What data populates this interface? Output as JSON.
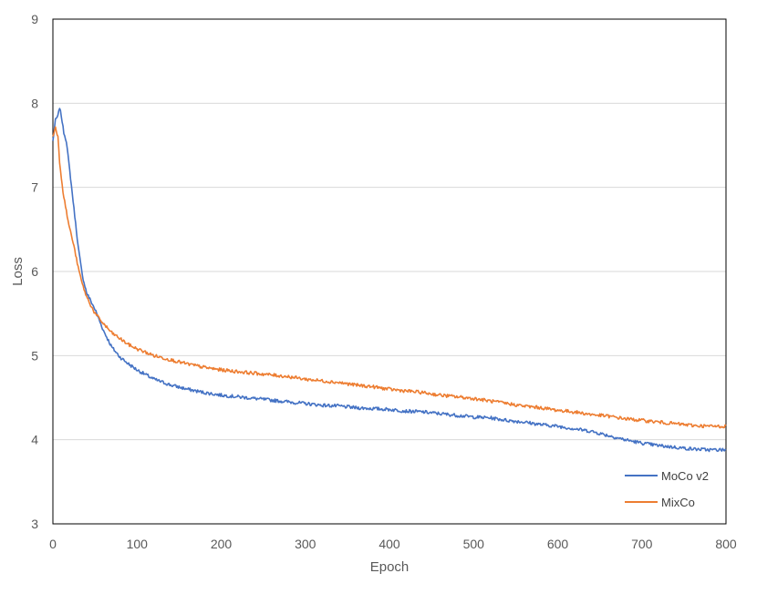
{
  "chart_data": {
    "type": "line",
    "title": "",
    "xlabel": "Epoch",
    "ylabel": "Loss",
    "xlim": [
      0,
      800
    ],
    "ylim": [
      3,
      9
    ],
    "x_ticks": [
      "0",
      "100",
      "200",
      "300",
      "400",
      "500",
      "600",
      "700",
      "800"
    ],
    "y_ticks": [
      "3",
      "4",
      "5",
      "6",
      "7",
      "8",
      "9"
    ],
    "grid": "horizontal",
    "legend_position": "bottom-right",
    "series": [
      {
        "name": "MoCo v2",
        "color": "#4472C4",
        "points": [
          [
            0,
            7.55
          ],
          [
            3,
            7.8
          ],
          [
            6,
            7.85
          ],
          [
            8,
            7.95
          ],
          [
            10,
            7.85
          ],
          [
            13,
            7.65
          ],
          [
            16,
            7.55
          ],
          [
            20,
            7.2
          ],
          [
            25,
            6.75
          ],
          [
            30,
            6.3
          ],
          [
            35,
            5.95
          ],
          [
            40,
            5.75
          ],
          [
            50,
            5.55
          ],
          [
            60,
            5.3
          ],
          [
            70,
            5.1
          ],
          [
            80,
            4.98
          ],
          [
            90,
            4.9
          ],
          [
            100,
            4.83
          ],
          [
            120,
            4.72
          ],
          [
            140,
            4.65
          ],
          [
            160,
            4.6
          ],
          [
            180,
            4.56
          ],
          [
            200,
            4.53
          ],
          [
            220,
            4.51
          ],
          [
            240,
            4.49
          ],
          [
            260,
            4.47
          ],
          [
            280,
            4.45
          ],
          [
            300,
            4.43
          ],
          [
            320,
            4.41
          ],
          [
            340,
            4.4
          ],
          [
            360,
            4.38
          ],
          [
            380,
            4.37
          ],
          [
            400,
            4.36
          ],
          [
            420,
            4.34
          ],
          [
            440,
            4.33
          ],
          [
            460,
            4.31
          ],
          [
            480,
            4.29
          ],
          [
            500,
            4.27
          ],
          [
            520,
            4.26
          ],
          [
            540,
            4.23
          ],
          [
            560,
            4.21
          ],
          [
            580,
            4.18
          ],
          [
            600,
            4.16
          ],
          [
            620,
            4.13
          ],
          [
            640,
            4.1
          ],
          [
            660,
            4.05
          ],
          [
            680,
            4.0
          ],
          [
            700,
            3.96
          ],
          [
            720,
            3.93
          ],
          [
            740,
            3.91
          ],
          [
            760,
            3.89
          ],
          [
            780,
            3.88
          ],
          [
            800,
            3.88
          ]
        ]
      },
      {
        "name": "MixCo",
        "color": "#ED7D31",
        "points": [
          [
            0,
            7.6
          ],
          [
            3,
            7.72
          ],
          [
            6,
            7.6
          ],
          [
            8,
            7.3
          ],
          [
            12,
            6.95
          ],
          [
            18,
            6.6
          ],
          [
            25,
            6.3
          ],
          [
            30,
            6.05
          ],
          [
            35,
            5.85
          ],
          [
            40,
            5.7
          ],
          [
            50,
            5.5
          ],
          [
            60,
            5.38
          ],
          [
            70,
            5.27
          ],
          [
            80,
            5.2
          ],
          [
            90,
            5.13
          ],
          [
            100,
            5.08
          ],
          [
            120,
            5.0
          ],
          [
            140,
            4.95
          ],
          [
            160,
            4.9
          ],
          [
            180,
            4.86
          ],
          [
            200,
            4.83
          ],
          [
            220,
            4.81
          ],
          [
            240,
            4.79
          ],
          [
            260,
            4.77
          ],
          [
            280,
            4.75
          ],
          [
            300,
            4.72
          ],
          [
            320,
            4.7
          ],
          [
            340,
            4.68
          ],
          [
            360,
            4.65
          ],
          [
            380,
            4.63
          ],
          [
            400,
            4.6
          ],
          [
            420,
            4.58
          ],
          [
            440,
            4.56
          ],
          [
            460,
            4.53
          ],
          [
            480,
            4.51
          ],
          [
            500,
            4.49
          ],
          [
            520,
            4.46
          ],
          [
            540,
            4.43
          ],
          [
            560,
            4.4
          ],
          [
            580,
            4.38
          ],
          [
            600,
            4.35
          ],
          [
            620,
            4.33
          ],
          [
            640,
            4.3
          ],
          [
            660,
            4.28
          ],
          [
            680,
            4.25
          ],
          [
            700,
            4.23
          ],
          [
            720,
            4.21
          ],
          [
            740,
            4.19
          ],
          [
            760,
            4.17
          ],
          [
            780,
            4.16
          ],
          [
            800,
            4.16
          ]
        ]
      }
    ]
  }
}
